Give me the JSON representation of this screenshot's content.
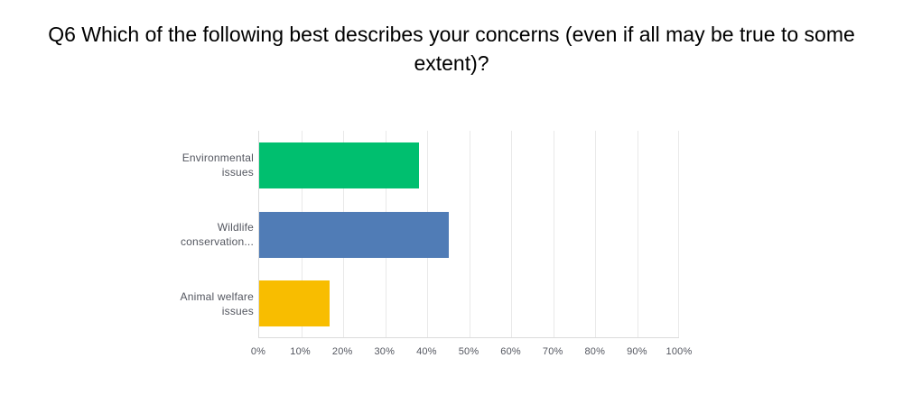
{
  "title": {
    "full": "Q6 Which of the following best describes your concerns (even if all may be true to some extent)?",
    "lines": [
      "Q6 Which of the following best describes your concerns (even if all may be true to some",
      "extent)?"
    ]
  },
  "chart_data": {
    "type": "bar",
    "orientation": "horizontal",
    "title": "Q6 Which of the following best describes your concerns (even if all may be true to some extent)?",
    "categories": [
      "Environmental issues",
      "Wildlife conservation...",
      "Animal welfare issues"
    ],
    "category_label_lines": [
      [
        "Environmental",
        "issues"
      ],
      [
        "Wildlife",
        "conservation..."
      ],
      [
        "Animal welfare",
        "issues"
      ]
    ],
    "values": [
      38.1,
      45.2,
      16.7
    ],
    "unit": "%",
    "xlabel": "",
    "ylabel": "",
    "xlim": [
      0,
      100
    ],
    "x_ticks": [
      "0%",
      "10%",
      "20%",
      "30%",
      "40%",
      "50%",
      "60%",
      "70%",
      "80%",
      "90%",
      "100%"
    ],
    "bar_colors": [
      "#00BF6F",
      "#507CB6",
      "#F8BD00"
    ],
    "grid": true,
    "legend": false
  },
  "colors": {
    "background": "#ffffff",
    "title_text": "#000000",
    "label_text": "#53565f",
    "gridline": "#e9e9e9",
    "axis_line": "#dcdcdc",
    "bar_green": "#00BF6F",
    "bar_blue": "#507CB6",
    "bar_yellow": "#F8BD00"
  }
}
